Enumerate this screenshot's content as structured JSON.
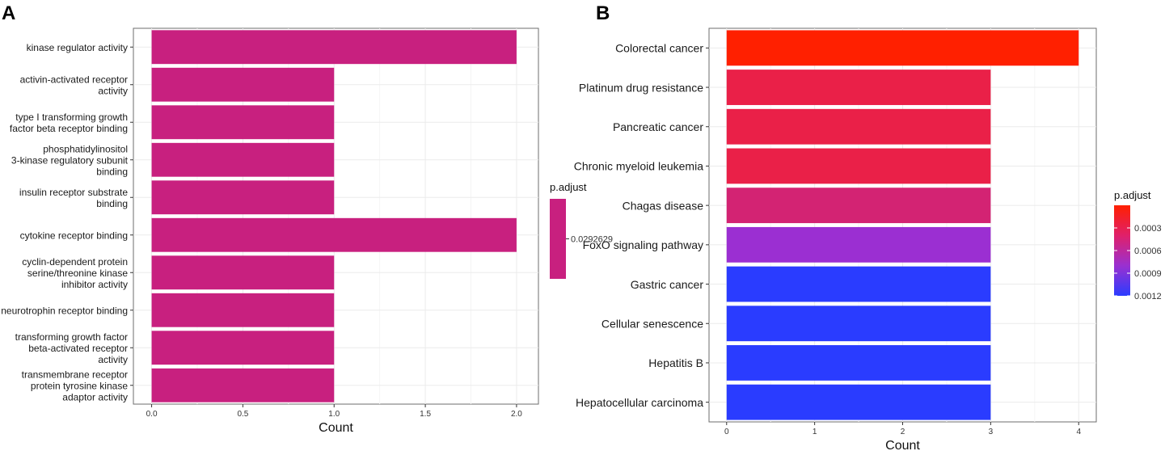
{
  "panels": {
    "a_letter": "A",
    "b_letter": "B"
  },
  "chart_data": [
    {
      "type": "bar",
      "orientation": "horizontal",
      "panel": "A",
      "categories": [
        [
          "kinase regulator activity"
        ],
        [
          "activin-activated receptor",
          "activity"
        ],
        [
          "type I transforming growth",
          "factor beta receptor binding"
        ],
        [
          "phosphatidylinositol",
          "3-kinase regulatory subunit",
          "binding"
        ],
        [
          "insulin receptor substrate",
          "binding"
        ],
        [
          "cytokine receptor binding"
        ],
        [
          "cyclin-dependent protein",
          "serine/threonine kinase",
          "inhibitor activity"
        ],
        [
          "neurotrophin receptor binding"
        ],
        [
          "transforming growth factor",
          "beta-activated receptor",
          "activity"
        ],
        [
          "transmembrane receptor",
          "protein tyrosine kinase",
          "adaptor activity"
        ]
      ],
      "values": [
        2,
        1,
        1,
        1,
        1,
        2,
        1,
        1,
        1,
        1
      ],
      "colors": [
        "#c8207f",
        "#c8207f",
        "#c8207f",
        "#c8207f",
        "#c8207f",
        "#c8207f",
        "#c8207f",
        "#c8207f",
        "#c8207f",
        "#c8207f"
      ],
      "xlabel": "Count",
      "xlim": [
        -0.1,
        2.12
      ],
      "xticks": [
        0.0,
        0.5,
        1.0,
        1.5,
        2.0
      ],
      "xtick_labels": [
        "0.0",
        "0.5",
        "1.0",
        "1.5",
        "2.0"
      ],
      "legend": {
        "title": "p.adjust",
        "color": "#c8207f",
        "ticks": [
          "0.0292629"
        ]
      }
    },
    {
      "type": "bar",
      "orientation": "horizontal",
      "panel": "B",
      "categories": [
        "Colorectal cancer",
        "Platinum drug resistance",
        "Pancreatic cancer",
        "Chronic myeloid leukemia",
        "Chagas disease",
        "FoxO signaling pathway",
        "Gastric cancer",
        "Cellular senescence",
        "Hepatitis B",
        "Hepatocellular carcinoma"
      ],
      "values": [
        4,
        3,
        3,
        3,
        3,
        3,
        3,
        3,
        3,
        3
      ],
      "colors": [
        "#ff2000",
        "#ea2048",
        "#ea2048",
        "#ea2048",
        "#d32373",
        "#9b2fd2",
        "#2a3cff",
        "#2a3cff",
        "#2a3cff",
        "#2a3cff"
      ],
      "xlabel": "Count",
      "xlim": [
        -0.2,
        4.2
      ],
      "xticks": [
        0,
        1,
        2,
        3,
        4
      ],
      "xtick_labels": [
        "0",
        "1",
        "2",
        "3",
        "4"
      ],
      "legend": {
        "title": "p.adjust",
        "gradient": [
          "#ff2000",
          "#e0206a",
          "#9a30d0",
          "#2a3cff"
        ],
        "ticks": [
          "0.0003",
          "0.0006",
          "0.0009",
          "0.0012"
        ]
      }
    }
  ]
}
